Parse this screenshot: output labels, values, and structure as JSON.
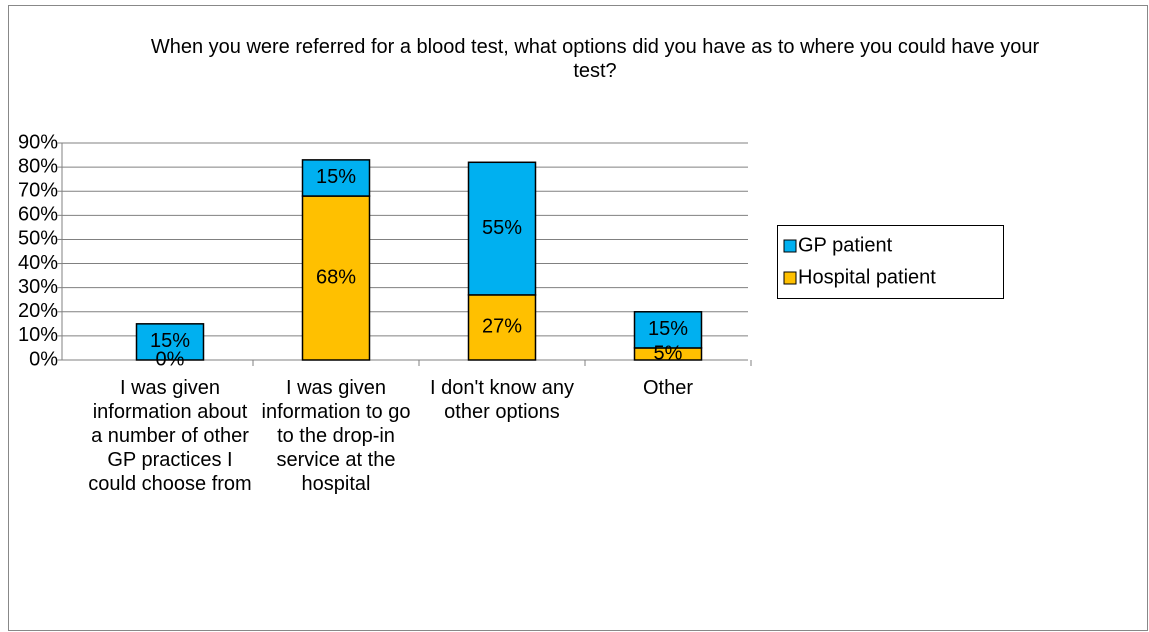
{
  "chart_data": {
    "type": "stacked-bar",
    "title": "When you were referred for a blood test, what options did you have as to where you could have your test?",
    "categories": [
      "I was given information about a number of other GP practices I could choose from",
      "I was given information to go to the drop-in service at the hospital",
      "I don't know any other options",
      "Other"
    ],
    "series": [
      {
        "name": "GP patient",
        "color": "#00b0f0",
        "values": [
          15,
          15,
          55,
          15
        ],
        "value_labels": [
          "15%",
          "15%",
          "55%",
          "15%"
        ]
      },
      {
        "name": "Hospital patient",
        "color": "#ffc000",
        "values": [
          0,
          68,
          27,
          5
        ],
        "value_labels": [
          "0%",
          "68%",
          "27%",
          "5%"
        ]
      }
    ],
    "ylim": [
      0,
      90
    ],
    "yticks": [
      {
        "value": 0,
        "label": "0%"
      },
      {
        "value": 10,
        "label": "10%"
      },
      {
        "value": 20,
        "label": "20%"
      },
      {
        "value": 30,
        "label": "30%"
      },
      {
        "value": 40,
        "label": "40%"
      },
      {
        "value": 50,
        "label": "50%"
      },
      {
        "value": 60,
        "label": "60%"
      },
      {
        "value": 70,
        "label": "70%"
      },
      {
        "value": 80,
        "label": "80%"
      },
      {
        "value": 90,
        "label": "90%"
      }
    ],
    "grid": true,
    "legend": "right"
  }
}
